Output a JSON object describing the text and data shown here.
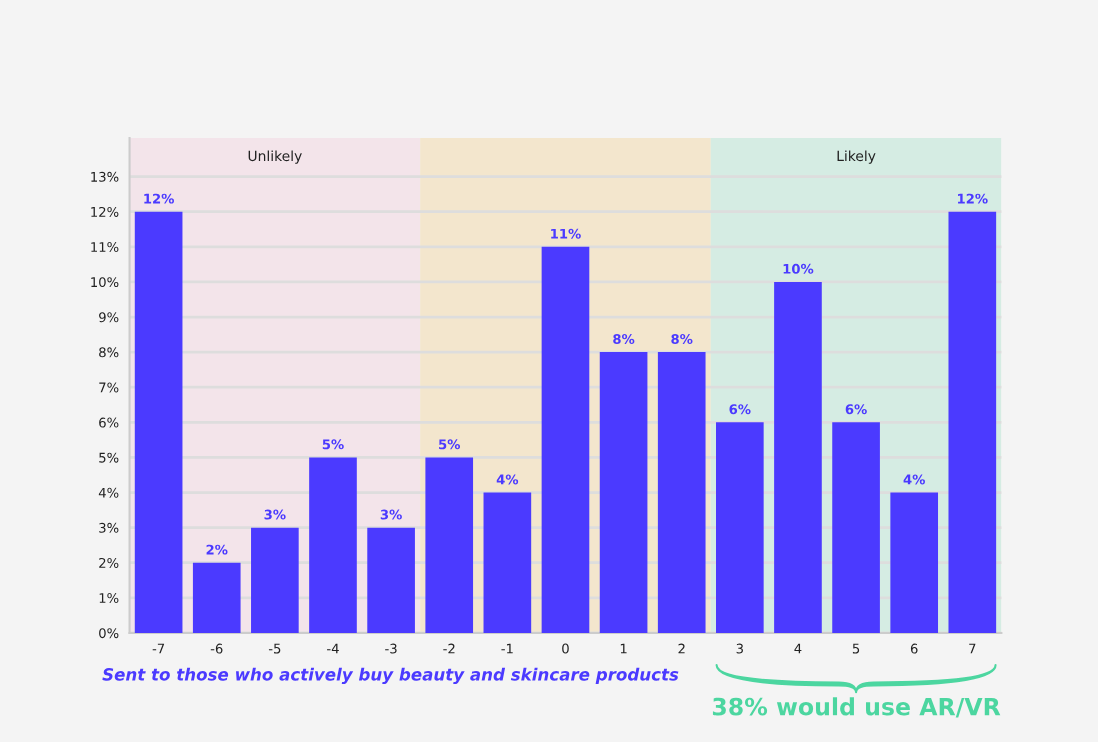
{
  "chart_data": {
    "type": "bar",
    "x": [
      -7,
      -6,
      -5,
      -4,
      -3,
      -2,
      -1,
      0,
      1,
      2,
      3,
      4,
      5,
      6,
      7
    ],
    "values": [
      12,
      2,
      3,
      5,
      3,
      5,
      4,
      11,
      8,
      8,
      6,
      10,
      6,
      4,
      12
    ],
    "value_labels": [
      "12%",
      "2%",
      "3%",
      "5%",
      "3%",
      "5%",
      "4%",
      "11%",
      "8%",
      "8%",
      "6%",
      "10%",
      "6%",
      "4%",
      "12%"
    ],
    "color": "#4b3aff",
    "xlim": [
      -7.5,
      7.5
    ],
    "xticks": [
      -7,
      -6,
      -5,
      -4,
      -3,
      -2,
      -1,
      0,
      1,
      2,
      3,
      4,
      5,
      6,
      7
    ],
    "ylim": [
      0,
      14.1
    ],
    "yticks": [
      {
        "value": 0,
        "label": "0%"
      },
      {
        "value": 1,
        "label": "1%"
      },
      {
        "value": 2,
        "label": "2%"
      },
      {
        "value": 3,
        "label": "3%"
      },
      {
        "value": 4,
        "label": "4%"
      },
      {
        "value": 5,
        "label": "5%"
      },
      {
        "value": 6,
        "label": "6%"
      },
      {
        "value": 7,
        "label": "7%"
      },
      {
        "value": 8,
        "label": "8%"
      },
      {
        "value": 9,
        "label": "9%"
      },
      {
        "value": 10,
        "label": "10%"
      },
      {
        "value": 11,
        "label": "11%"
      },
      {
        "value": 12,
        "label": "12%"
      },
      {
        "value": 13,
        "label": "13%"
      }
    ],
    "grid": "y",
    "bands": [
      {
        "axis": "x",
        "from": -7.5,
        "to": -2.5,
        "label": "Unlikely",
        "color": "#f3e4ea"
      },
      {
        "axis": "x",
        "from": -2.5,
        "to": 2.5,
        "color": "#f3e6cd"
      },
      {
        "axis": "x",
        "from": 2.5,
        "to": 7.5,
        "label": "Likely",
        "color": "#d5ece3"
      }
    ],
    "annotations": [
      "Sent to those who actively buy beauty and skincare products",
      "38% would use AR/VR"
    ]
  }
}
